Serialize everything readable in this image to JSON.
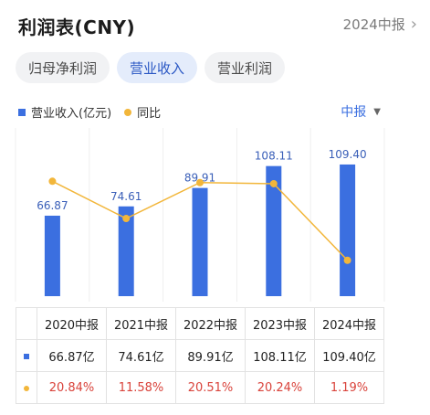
{
  "header": {
    "title": "利润表(CNY)",
    "period": "2024中报"
  },
  "tabs": [
    "归母净利润",
    "营业收入",
    "营业利润"
  ],
  "active_tab": 1,
  "legend": {
    "bar_label": "营业收入(亿元)",
    "line_label": "同比"
  },
  "frequency": "中报",
  "colors": {
    "bar": "#3b6fe0",
    "line": "#f2b63a",
    "negative_text": "#d9433b",
    "active_tab_bg": "#e4ecfb"
  },
  "chart_data": {
    "type": "bar",
    "categories": [
      "2020中报",
      "2021中报",
      "2022中报",
      "2023中报",
      "2024中报"
    ],
    "series": [
      {
        "name": "营业收入(亿元)",
        "type": "bar",
        "values": [
          66.87,
          74.61,
          89.91,
          108.11,
          109.4
        ]
      },
      {
        "name": "同比",
        "type": "line",
        "values": [
          20.84,
          11.58,
          20.51,
          20.24,
          1.19
        ],
        "unit": "%"
      }
    ],
    "value_labels": [
      "66.87",
      "74.61",
      "89.91",
      "108.11",
      "109.40"
    ]
  },
  "table": {
    "headers": [
      "2020中报",
      "2021中报",
      "2022中报",
      "2023中报",
      "2024中报"
    ],
    "revenue": [
      "66.87亿",
      "74.61亿",
      "89.91亿",
      "108.11亿",
      "109.40亿"
    ],
    "yoy": [
      "20.84%",
      "11.58%",
      "20.51%",
      "20.24%",
      "1.19%"
    ]
  }
}
